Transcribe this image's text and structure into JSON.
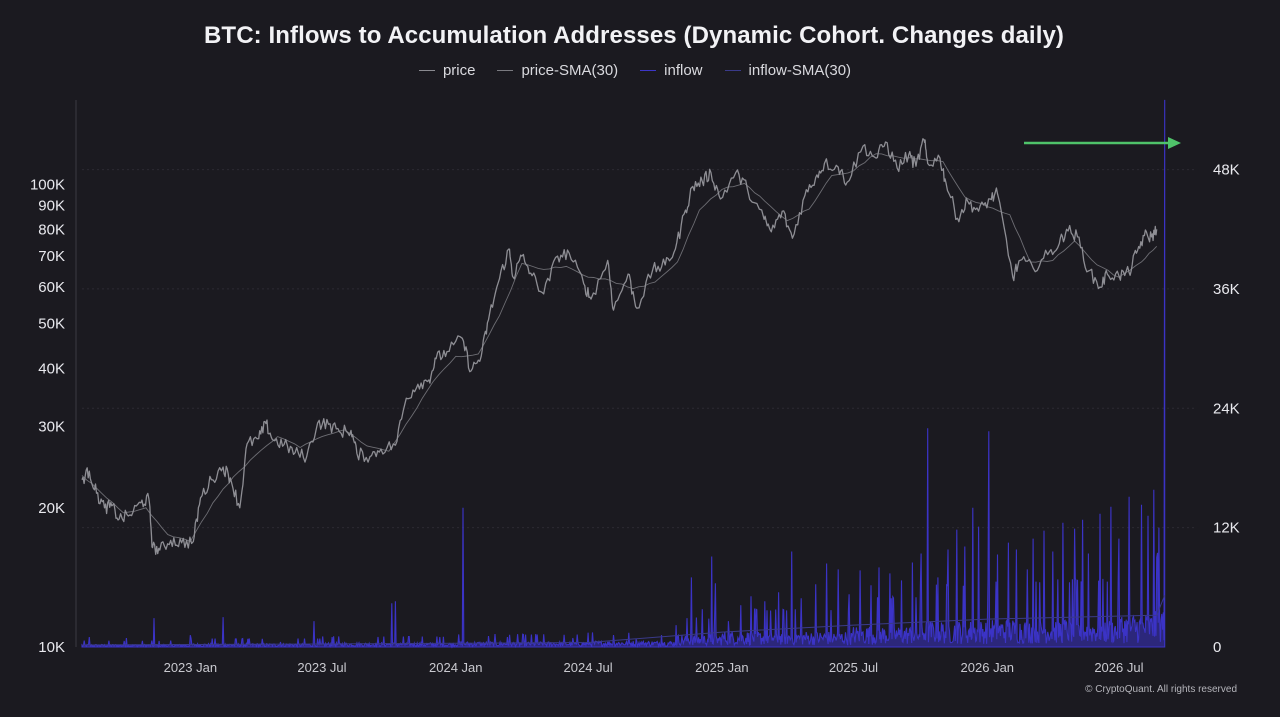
{
  "chart_data": {
    "type": "line",
    "title": "BTC: Inflows to Accumulation Addresses (Dynamic Cohort. Changes daily)",
    "legend": [
      "price",
      "price-SMA(30)",
      "inflow",
      "inflow-SMA(30)"
    ],
    "legend_position": "top-center",
    "y_left": {
      "scale": "log",
      "range": [
        10000,
        160000
      ],
      "tick_values": [
        10000,
        20000,
        30000,
        40000,
        50000,
        60000,
        70000,
        80000,
        90000,
        100000
      ],
      "tick_labels": [
        "10K",
        "20K",
        "30K",
        "40K",
        "50K",
        "60K",
        "70K",
        "80K",
        "90K",
        "100K"
      ]
    },
    "y_right": {
      "scale": "linear",
      "range": [
        0,
        56000
      ],
      "tick_values": [
        0,
        12000,
        24000,
        36000,
        48000
      ],
      "tick_labels": [
        "0",
        "12K",
        "24K",
        "36K",
        "48K"
      ]
    },
    "x_axis": {
      "range": [
        "2022-08-05",
        "2026-10-15"
      ],
      "tick_dates": [
        "2023-01-01",
        "2023-07-01",
        "2024-01-01",
        "2024-07-01",
        "2025-01-01",
        "2025-07-01",
        "2026-01-01",
        "2026-07-01"
      ],
      "tick_labels": [
        "2023 Jan",
        "2023 Jul",
        "2024 Jan",
        "2024 Jul",
        "2025 Jan",
        "2025 Jul",
        "2026 Jan",
        "2026 Jul"
      ]
    },
    "grid": "horizontal-dashed",
    "series": [
      {
        "name": "price",
        "color": "#8e8e94",
        "points": [
          [
            "2022-08-05",
            23000
          ],
          [
            "2022-08-15",
            24000
          ],
          [
            "2022-08-25",
            21500
          ],
          [
            "2022-09-05",
            20000
          ],
          [
            "2022-09-15",
            20200
          ],
          [
            "2022-09-25",
            18900
          ],
          [
            "2022-10-10",
            19300
          ],
          [
            "2022-10-25",
            20500
          ],
          [
            "2022-11-05",
            20900
          ],
          [
            "2022-11-10",
            16400
          ],
          [
            "2022-11-20",
            16200
          ],
          [
            "2022-12-05",
            17000
          ],
          [
            "2022-12-20",
            16800
          ],
          [
            "2023-01-05",
            16900
          ],
          [
            "2023-01-15",
            21000
          ],
          [
            "2023-01-30",
            23000
          ],
          [
            "2023-02-15",
            24500
          ],
          [
            "2023-02-25",
            23200
          ],
          [
            "2023-03-10",
            20000
          ],
          [
            "2023-03-20",
            27500
          ],
          [
            "2023-04-05",
            28200
          ],
          [
            "2023-04-15",
            30400
          ],
          [
            "2023-04-25",
            28000
          ],
          [
            "2023-05-10",
            27400
          ],
          [
            "2023-05-25",
            26300
          ],
          [
            "2023-06-10",
            25800
          ],
          [
            "2023-06-25",
            30500
          ],
          [
            "2023-07-10",
            30300
          ],
          [
            "2023-07-25",
            29200
          ],
          [
            "2023-08-10",
            29400
          ],
          [
            "2023-08-18",
            26200
          ],
          [
            "2023-09-05",
            25800
          ],
          [
            "2023-09-20",
            26800
          ],
          [
            "2023-10-10",
            27300
          ],
          [
            "2023-10-25",
            34500
          ],
          [
            "2023-11-10",
            37000
          ],
          [
            "2023-11-25",
            37800
          ],
          [
            "2023-12-05",
            42000
          ],
          [
            "2023-12-20",
            43500
          ],
          [
            "2024-01-10",
            46500
          ],
          [
            "2024-01-22",
            39500
          ],
          [
            "2024-02-05",
            42500
          ],
          [
            "2024-02-15",
            51000
          ],
          [
            "2024-02-28",
            61000
          ],
          [
            "2024-03-14",
            72500
          ],
          [
            "2024-03-20",
            63000
          ],
          [
            "2024-04-01",
            70000
          ],
          [
            "2024-04-15",
            63500
          ],
          [
            "2024-05-01",
            58000
          ],
          [
            "2024-05-20",
            70000
          ],
          [
            "2024-06-05",
            71000
          ],
          [
            "2024-06-25",
            61000
          ],
          [
            "2024-07-05",
            56500
          ],
          [
            "2024-07-28",
            68500
          ],
          [
            "2024-08-05",
            53500
          ],
          [
            "2024-08-25",
            64000
          ],
          [
            "2024-09-06",
            54000
          ],
          [
            "2024-09-28",
            65500
          ],
          [
            "2024-10-15",
            67000
          ],
          [
            "2024-10-29",
            72500
          ],
          [
            "2024-11-12",
            88000
          ],
          [
            "2024-11-22",
            99000
          ],
          [
            "2024-12-05",
            101500
          ],
          [
            "2024-12-17",
            106000
          ],
          [
            "2024-12-30",
            93000
          ],
          [
            "2025-01-20",
            106000
          ],
          [
            "2025-02-05",
            98000
          ],
          [
            "2025-02-28",
            84000
          ],
          [
            "2025-03-10",
            79000
          ],
          [
            "2025-03-25",
            87500
          ],
          [
            "2025-04-08",
            76500
          ],
          [
            "2025-04-25",
            94500
          ],
          [
            "2025-05-10",
            103500
          ],
          [
            "2025-05-22",
            111000
          ],
          [
            "2025-06-10",
            109000
          ],
          [
            "2025-06-22",
            101000
          ],
          [
            "2025-07-14",
            121000
          ],
          [
            "2025-08-01",
            114000
          ],
          [
            "2025-08-14",
            123500
          ],
          [
            "2025-08-30",
            108500
          ],
          [
            "2025-09-15",
            116000
          ],
          [
            "2025-09-25",
            109500
          ],
          [
            "2025-10-06",
            125000
          ],
          [
            "2025-10-11",
            111000
          ],
          [
            "2025-10-28",
            114000
          ],
          [
            "2025-11-05",
            101000
          ],
          [
            "2025-11-21",
            84500
          ],
          [
            "2025-12-05",
            92000
          ],
          [
            "2025-12-20",
            87500
          ],
          [
            "2026-01-05",
            93000
          ],
          [
            "2026-01-15",
            95500
          ],
          [
            "2026-02-05",
            63000
          ],
          [
            "2026-02-15",
            68500
          ],
          [
            "2026-03-05",
            66000
          ],
          [
            "2026-03-25",
            70500
          ],
          [
            "2026-04-10",
            74500
          ],
          [
            "2026-04-20",
            80000
          ],
          [
            "2026-05-05",
            77000
          ],
          [
            "2026-05-20",
            65000
          ],
          [
            "2026-06-05",
            60000
          ],
          [
            "2026-06-15",
            64000
          ],
          [
            "2026-07-01",
            63500
          ],
          [
            "2026-07-15",
            64500
          ],
          [
            "2026-07-25",
            71000
          ],
          [
            "2026-08-05",
            77500
          ],
          [
            "2026-08-15",
            77000
          ],
          [
            "2026-08-22",
            80000
          ]
        ]
      },
      {
        "name": "price-SMA(30)",
        "color": "#6d6d73",
        "points": [
          [
            "2022-08-05",
            23500
          ],
          [
            "2022-09-01",
            21500
          ],
          [
            "2022-10-01",
            19500
          ],
          [
            "2022-11-01",
            20000
          ],
          [
            "2022-12-01",
            17500
          ],
          [
            "2023-01-01",
            16900
          ],
          [
            "2023-02-01",
            20500
          ],
          [
            "2023-03-01",
            23300
          ],
          [
            "2023-04-01",
            26000
          ],
          [
            "2023-05-01",
            28500
          ],
          [
            "2023-06-01",
            27000
          ],
          [
            "2023-07-01",
            28500
          ],
          [
            "2023-08-01",
            29500
          ],
          [
            "2023-09-01",
            27200
          ],
          [
            "2023-10-01",
            26500
          ],
          [
            "2023-11-01",
            31500
          ],
          [
            "2023-12-01",
            37500
          ],
          [
            "2024-01-01",
            42500
          ],
          [
            "2024-02-01",
            43000
          ],
          [
            "2024-03-01",
            52000
          ],
          [
            "2024-04-01",
            67500
          ],
          [
            "2024-05-01",
            65500
          ],
          [
            "2024-06-01",
            66500
          ],
          [
            "2024-07-01",
            63000
          ],
          [
            "2024-08-01",
            62000
          ],
          [
            "2024-09-01",
            59500
          ],
          [
            "2024-10-01",
            61500
          ],
          [
            "2024-11-01",
            68000
          ],
          [
            "2024-12-01",
            88000
          ],
          [
            "2025-01-01",
            97500
          ],
          [
            "2025-02-01",
            100500
          ],
          [
            "2025-03-01",
            92000
          ],
          [
            "2025-04-01",
            83500
          ],
          [
            "2025-05-01",
            88500
          ],
          [
            "2025-06-01",
            104500
          ],
          [
            "2025-07-01",
            107000
          ],
          [
            "2025-08-01",
            116500
          ],
          [
            "2025-09-01",
            114500
          ],
          [
            "2025-10-01",
            113500
          ],
          [
            "2025-11-01",
            112000
          ],
          [
            "2025-12-01",
            94000
          ],
          [
            "2026-01-01",
            89500
          ],
          [
            "2026-02-01",
            86000
          ],
          [
            "2026-03-01",
            68000
          ],
          [
            "2026-04-01",
            68500
          ],
          [
            "2026-05-01",
            75500
          ],
          [
            "2026-06-01",
            67000
          ],
          [
            "2026-07-01",
            63000
          ],
          [
            "2026-08-01",
            68000
          ],
          [
            "2026-08-22",
            73500
          ]
        ]
      },
      {
        "name": "inflow",
        "color": "#3b33c6",
        "baseline_by_period": [
          [
            "2022-08-05",
            150
          ],
          [
            "2023-01-01",
            200
          ],
          [
            "2023-07-01",
            250
          ],
          [
            "2024-01-01",
            300
          ],
          [
            "2024-07-01",
            350
          ],
          [
            "2024-11-01",
            700
          ],
          [
            "2025-01-01",
            900
          ],
          [
            "2025-07-01",
            1200
          ],
          [
            "2025-10-01",
            1500
          ],
          [
            "2026-01-01",
            1600
          ],
          [
            "2026-07-01",
            1900
          ],
          [
            "2026-08-20",
            2200
          ]
        ],
        "spikes": [
          [
            "2022-08-15",
            1000
          ],
          [
            "2022-10-05",
            900
          ],
          [
            "2022-11-12",
            2900
          ],
          [
            "2023-01-01",
            1200
          ],
          [
            "2023-02-15",
            3000
          ],
          [
            "2023-05-05",
            500
          ],
          [
            "2023-06-20",
            2600
          ],
          [
            "2023-07-15",
            1000
          ],
          [
            "2023-10-05",
            4400
          ],
          [
            "2023-10-10",
            4600
          ],
          [
            "2023-12-10",
            1000
          ],
          [
            "2024-01-11",
            14000
          ],
          [
            "2024-02-15",
            1100
          ],
          [
            "2024-03-12",
            1000
          ],
          [
            "2024-04-20",
            1300
          ],
          [
            "2024-06-10",
            900
          ],
          [
            "2024-08-05",
            1200
          ],
          [
            "2024-09-05",
            800
          ],
          [
            "2024-10-10",
            1200
          ],
          [
            "2024-10-30",
            2200
          ],
          [
            "2024-11-20",
            7000
          ],
          [
            "2024-12-05",
            3800
          ],
          [
            "2024-12-18",
            9100
          ],
          [
            "2024-12-23",
            6400
          ],
          [
            "2025-01-10",
            2600
          ],
          [
            "2025-01-27",
            4200
          ],
          [
            "2025-02-10",
            5100
          ],
          [
            "2025-03-01",
            4600
          ],
          [
            "2025-03-20",
            5500
          ],
          [
            "2025-04-07",
            9600
          ],
          [
            "2025-04-20",
            4900
          ],
          [
            "2025-05-10",
            6300
          ],
          [
            "2025-05-25",
            8400
          ],
          [
            "2025-06-10",
            7800
          ],
          [
            "2025-06-25",
            5300
          ],
          [
            "2025-07-10",
            7700
          ],
          [
            "2025-07-25",
            6200
          ],
          [
            "2025-08-05",
            8000
          ],
          [
            "2025-08-20",
            7400
          ],
          [
            "2025-09-05",
            6700
          ],
          [
            "2025-09-20",
            8500
          ],
          [
            "2025-10-02",
            9400
          ],
          [
            "2025-10-11",
            22000
          ],
          [
            "2025-10-25",
            7000
          ],
          [
            "2025-11-08",
            9800
          ],
          [
            "2025-11-20",
            11800
          ],
          [
            "2025-12-01",
            10100
          ],
          [
            "2025-12-12",
            14000
          ],
          [
            "2025-12-20",
            12100
          ],
          [
            "2026-01-03",
            21700
          ],
          [
            "2026-01-15",
            9300
          ],
          [
            "2026-01-30",
            10500
          ],
          [
            "2026-02-10",
            9800
          ],
          [
            "2026-02-25",
            7800
          ],
          [
            "2026-03-05",
            10900
          ],
          [
            "2026-03-20",
            11700
          ],
          [
            "2026-04-01",
            9600
          ],
          [
            "2026-04-15",
            12500
          ],
          [
            "2026-05-01",
            11900
          ],
          [
            "2026-05-12",
            12800
          ],
          [
            "2026-05-20",
            9400
          ],
          [
            "2026-06-05",
            13400
          ],
          [
            "2026-06-20",
            14100
          ],
          [
            "2026-07-01",
            10900
          ],
          [
            "2026-07-15",
            15100
          ],
          [
            "2026-08-01",
            14300
          ],
          [
            "2026-08-10",
            13200
          ],
          [
            "2026-08-18",
            15800
          ],
          [
            "2026-08-22",
            9000
          ],
          [
            "2026-08-25",
            12000
          ],
          [
            "2026-09-02",
            55000
          ]
        ]
      },
      {
        "name": "inflow-SMA(30)",
        "color": "#3a3a8a",
        "points": [
          [
            "2022-08-05",
            200
          ],
          [
            "2023-07-01",
            300
          ],
          [
            "2024-07-01",
            450
          ],
          [
            "2025-01-01",
            1500
          ],
          [
            "2025-07-01",
            2200
          ],
          [
            "2026-01-01",
            2800
          ],
          [
            "2026-08-22",
            3200
          ],
          [
            "2026-09-02",
            5200
          ]
        ]
      }
    ],
    "annotations": [
      {
        "type": "arrow",
        "color": "#4fc36a",
        "direction": "right"
      }
    ]
  },
  "footer": "© CryptoQuant. All rights reserved"
}
